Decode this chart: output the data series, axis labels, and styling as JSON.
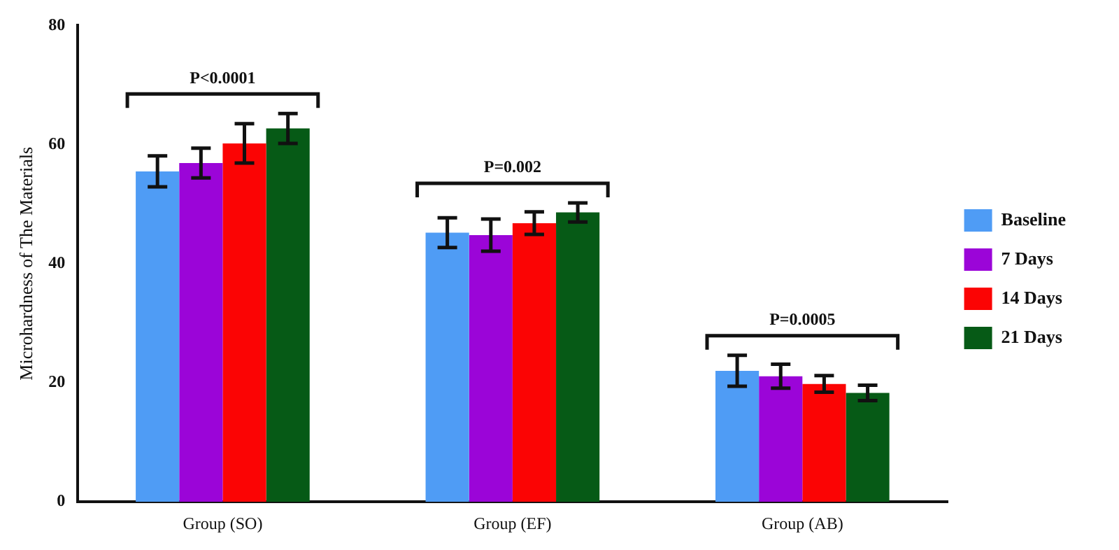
{
  "chart_data": {
    "type": "bar",
    "ylabel": "Microhardness of The Materials",
    "categories": [
      "Group (SO)",
      "Group (EF)",
      "Group (AB)"
    ],
    "series": [
      {
        "name": "Baseline",
        "color": "#4f9cf5",
        "values": [
          55.5,
          45.2,
          22.0
        ],
        "errors": [
          2.6,
          2.5,
          2.6
        ]
      },
      {
        "name": "7 Days",
        "color": "#9b05d8",
        "values": [
          56.9,
          44.8,
          21.1
        ],
        "errors": [
          2.5,
          2.7,
          2.0
        ]
      },
      {
        "name": "14 Days",
        "color": "#fb0404",
        "values": [
          60.2,
          46.8,
          19.8
        ],
        "errors": [
          3.3,
          1.9,
          1.4
        ]
      },
      {
        "name": "21 Days",
        "color": "#065a16",
        "values": [
          62.7,
          48.6,
          18.3
        ],
        "errors": [
          2.5,
          1.6,
          1.3
        ]
      }
    ],
    "ylim": [
      0,
      80
    ],
    "yticks": [
      0,
      20,
      40,
      60,
      80
    ],
    "grid": false,
    "legend": "right",
    "annotations": [
      "P<0.0001",
      "P=0.002",
      "P=0.0005"
    ]
  }
}
